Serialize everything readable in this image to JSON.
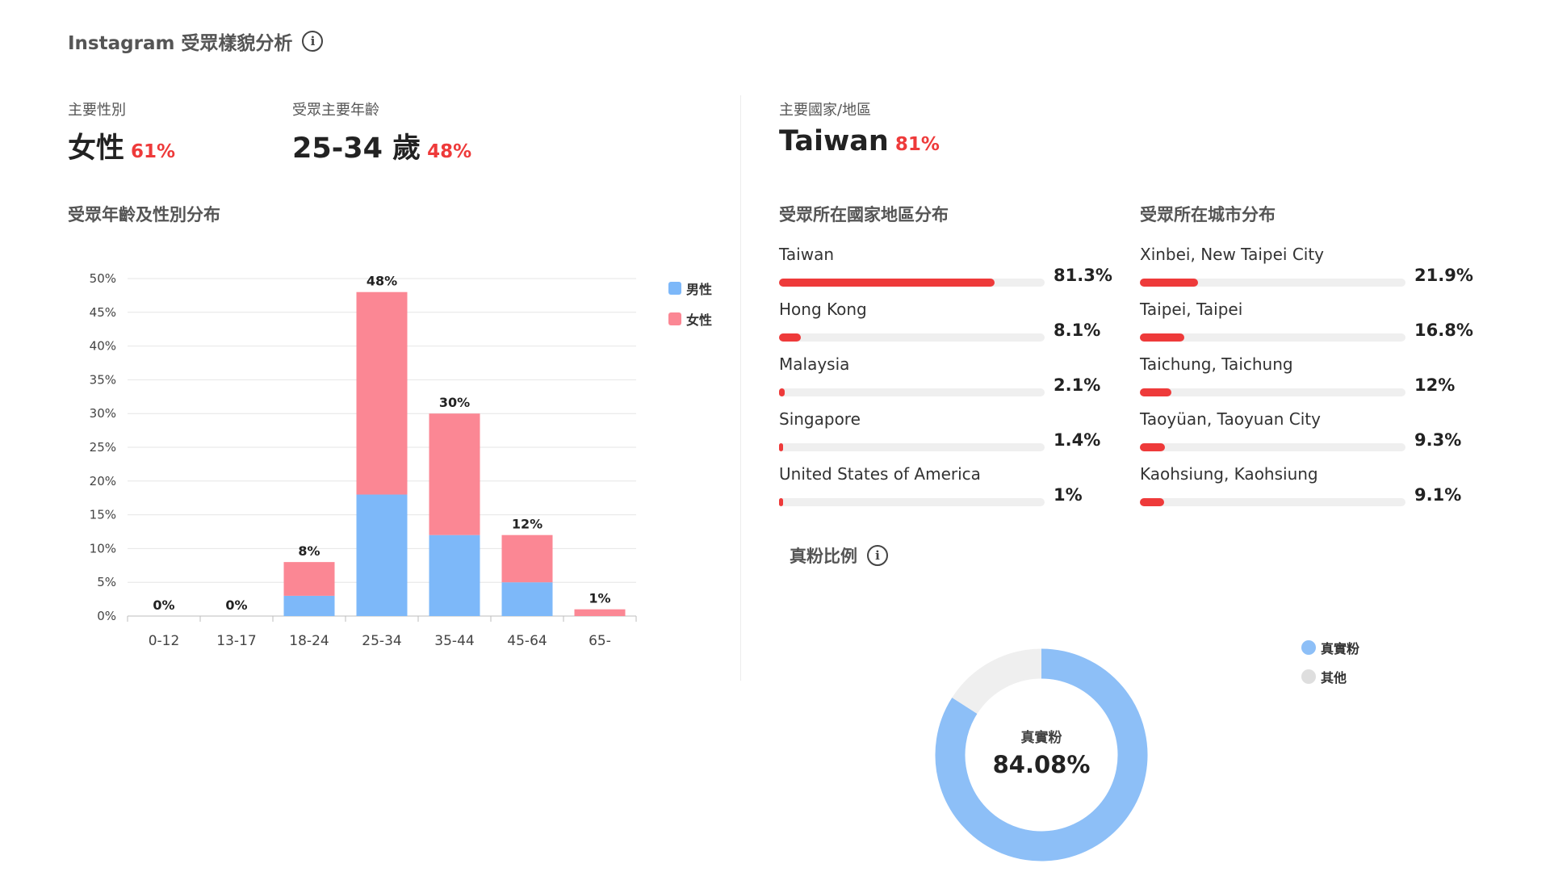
{
  "header": {
    "title": "Instagram 受眾樣貌分析"
  },
  "kpis": {
    "gender": {
      "label": "主要性別",
      "value": "女性",
      "pct": "61%"
    },
    "age": {
      "label": "受眾主要年齡",
      "value": "25-34 歲",
      "pct": "48%"
    },
    "country": {
      "label": "主要國家/地區",
      "value": "Taiwan",
      "pct": "81%"
    }
  },
  "age_gender": {
    "title": "受眾年齡及性別分布",
    "legend": {
      "male": "男性",
      "female": "女性"
    }
  },
  "chart_data": [
    {
      "type": "bar",
      "stacked": true,
      "title": "受眾年齡及性別分布",
      "categories": [
        "0-12",
        "13-17",
        "18-24",
        "25-34",
        "35-44",
        "45-64",
        "65-"
      ],
      "series": [
        {
          "name": "男性",
          "values": [
            0,
            0,
            3,
            18,
            12,
            5,
            0
          ],
          "color": "#7db8f9"
        },
        {
          "name": "女性",
          "values": [
            0,
            0,
            5,
            30,
            18,
            7,
            1
          ],
          "color": "#fb8794"
        }
      ],
      "totals": [
        0,
        0,
        8,
        48,
        30,
        12,
        1
      ],
      "total_labels": [
        "0%",
        "0%",
        "8%",
        "48%",
        "30%",
        "12%",
        "1%"
      ],
      "ylim": [
        0,
        50
      ],
      "yticks": [
        "0%",
        "5%",
        "10%",
        "15%",
        "20%",
        "25%",
        "30%",
        "35%",
        "40%",
        "45%",
        "50%"
      ],
      "grid": true,
      "legend": "right"
    },
    {
      "type": "pie",
      "title": "真粉比例",
      "slices": [
        {
          "name": "真實粉",
          "value": 84.08,
          "color": "#8dbff7"
        },
        {
          "name": "其他",
          "value": 15.92,
          "color": "#efefef"
        }
      ],
      "center_label": "真實粉",
      "center_value": "84.08%",
      "legend": "right"
    }
  ],
  "countries": {
    "title": "受眾所在國家地區分布",
    "items": [
      {
        "name": "Taiwan",
        "value": "81.3%",
        "pct": 81.3
      },
      {
        "name": "Hong Kong",
        "value": "8.1%",
        "pct": 8.1
      },
      {
        "name": "Malaysia",
        "value": "2.1%",
        "pct": 2.1
      },
      {
        "name": "Singapore",
        "value": "1.4%",
        "pct": 1.4
      },
      {
        "name": "United States of America",
        "value": "1%",
        "pct": 1
      }
    ]
  },
  "cities": {
    "title": "受眾所在城市分布",
    "items": [
      {
        "name": "Xinbei, New Taipei City",
        "value": "21.9%",
        "pct": 21.9
      },
      {
        "name": "Taipei, Taipei",
        "value": "16.8%",
        "pct": 16.8
      },
      {
        "name": "Taichung, Taichung",
        "value": "12%",
        "pct": 12
      },
      {
        "name": "Taoyüan, Taoyuan City",
        "value": "9.3%",
        "pct": 9.3
      },
      {
        "name": "Kaohsiung, Kaohsiung",
        "value": "9.1%",
        "pct": 9.1
      }
    ]
  },
  "real_fans": {
    "title": "真粉比例",
    "legend": {
      "real": "真實粉",
      "other": "其他"
    }
  }
}
